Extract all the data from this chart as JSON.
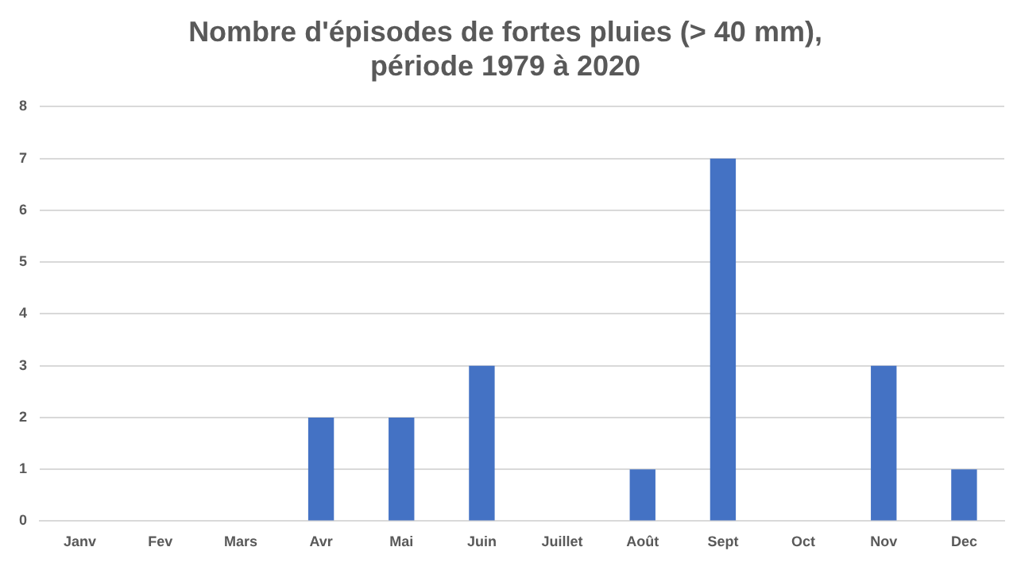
{
  "chart_data": {
    "type": "bar",
    "title": "Nombre d'épisodes de fortes pluies (> 40 mm),\npériode 1979 à 2020",
    "categories": [
      "Janv",
      "Fev",
      "Mars",
      "Avr",
      "Mai",
      "Juin",
      "Juillet",
      "Août",
      "Sept",
      "Oct",
      "Nov",
      "Dec"
    ],
    "values": [
      0,
      0,
      0,
      2,
      2,
      3,
      0,
      1,
      7,
      0,
      3,
      1
    ],
    "color": "#4472c4",
    "ylim": [
      0,
      8
    ],
    "yticks": [
      0,
      1,
      2,
      3,
      4,
      5,
      6,
      7,
      8
    ],
    "grid": "y",
    "legend": false
  }
}
